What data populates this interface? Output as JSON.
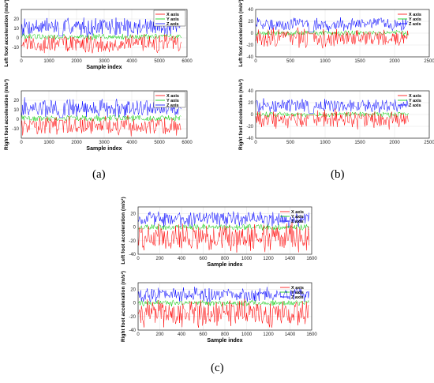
{
  "chart_data": [
    {
      "type": "line",
      "panel": "a",
      "ylabel": "Left foot acceleration (m/s²)",
      "xlabel": "Sample index",
      "xlim": [
        0,
        6000
      ],
      "ylim": [
        -20,
        30
      ],
      "xticks": [
        0,
        1000,
        2000,
        3000,
        4000,
        5000,
        6000
      ],
      "yticks": [
        -10,
        0,
        10,
        20
      ],
      "legend": "top-right",
      "legend_box": true,
      "data_xmax": 5800,
      "gaps": [
        [
          1380,
          1520
        ],
        [
          3850,
          3880
        ]
      ],
      "series": [
        {
          "name": "X axis",
          "color": "#ff0000",
          "center": -6,
          "amplitude": 9,
          "values_description": "values mostly between -15 and 0"
        },
        {
          "name": "Y axis",
          "color": "#00cc00",
          "center": 1,
          "amplitude": 3,
          "values_description": "values mostly between -3 and 5"
        },
        {
          "name": "Z axis",
          "color": "#0000ff",
          "center": 12,
          "amplitude": 9,
          "values_description": "values mostly between 5 and 25"
        }
      ]
    },
    {
      "type": "line",
      "panel": "a",
      "ylabel": "Right foot acceleration (m/s²)",
      "xlabel": "Sample index",
      "xlim": [
        0,
        6000
      ],
      "ylim": [
        -20,
        30
      ],
      "xticks": [
        0,
        1000,
        2000,
        3000,
        4000,
        5000,
        6000
      ],
      "yticks": [
        -10,
        0,
        10,
        20
      ],
      "legend": "top-right",
      "legend_box": true,
      "data_xmax": 5800,
      "gaps": [
        [
          1380,
          1520
        ]
      ],
      "series": [
        {
          "name": "X axis",
          "color": "#ff0000",
          "center": -7,
          "amplitude": 9
        },
        {
          "name": "Y axis",
          "color": "#00cc00",
          "center": 1,
          "amplitude": 3
        },
        {
          "name": "Z axis",
          "color": "#0000ff",
          "center": 12,
          "amplitude": 9
        }
      ]
    },
    {
      "type": "line",
      "panel": "b",
      "ylabel": "Left foot acceleration (m/s²)",
      "xlabel": "",
      "xlim": [
        0,
        2500
      ],
      "ylim": [
        -40,
        40
      ],
      "xticks": [
        0,
        500,
        1000,
        1500,
        2000,
        2500
      ],
      "yticks": [
        -40,
        -20,
        0,
        20,
        40
      ],
      "legend": "top-right",
      "legend_box": false,
      "data_xmax": 2200,
      "gaps": [
        [
          760,
          840
        ]
      ],
      "series": [
        {
          "name": "X axis",
          "color": "#ff0000",
          "center": -8,
          "amplitude": 14
        },
        {
          "name": "Y axis",
          "color": "#00cc00",
          "center": 0,
          "amplitude": 4
        },
        {
          "name": "Z axis",
          "color": "#0000ff",
          "center": 15,
          "amplitude": 10
        }
      ]
    },
    {
      "type": "line",
      "panel": "b",
      "ylabel": "Right foot acceleration (m/s²)",
      "xlabel": "",
      "xlim": [
        0,
        2500
      ],
      "ylim": [
        -40,
        40
      ],
      "xticks": [
        0,
        500,
        1000,
        1500,
        2000,
        2500
      ],
      "yticks": [
        -40,
        -20,
        0,
        20,
        40
      ],
      "legend": "top-right",
      "legend_box": false,
      "data_xmax": 2200,
      "gaps": [
        [
          760,
          840
        ]
      ],
      "series": [
        {
          "name": "X axis",
          "color": "#ff0000",
          "center": -8,
          "amplitude": 14
        },
        {
          "name": "Y axis",
          "color": "#00cc00",
          "center": 0,
          "amplitude": 4
        },
        {
          "name": "Z axis",
          "color": "#0000ff",
          "center": 15,
          "amplitude": 10
        }
      ]
    },
    {
      "type": "line",
      "panel": "c",
      "ylabel": "Left foot acceleration (m/s²)",
      "xlabel": "Sample index",
      "xlim": [
        0,
        1600
      ],
      "ylim": [
        -40,
        30
      ],
      "xticks": [
        0,
        200,
        400,
        600,
        800,
        1000,
        1200,
        1400,
        1600
      ],
      "yticks": [
        -40,
        -20,
        0,
        20
      ],
      "legend": "top-right",
      "legend_box": false,
      "data_xmax": 1580,
      "gaps": [],
      "series": [
        {
          "name": "X axis",
          "color": "#ff0000",
          "center": -15,
          "amplitude": 18
        },
        {
          "name": "Y axis",
          "color": "#00cc00",
          "center": 0,
          "amplitude": 4
        },
        {
          "name": "Z axis",
          "color": "#0000ff",
          "center": 12,
          "amplitude": 10
        }
      ]
    },
    {
      "type": "line",
      "panel": "c",
      "ylabel": "Right foot acceleration (m/s²)",
      "xlabel": "Sample index",
      "xlim": [
        0,
        1600
      ],
      "ylim": [
        -40,
        30
      ],
      "xticks": [
        0,
        200,
        400,
        600,
        800,
        1000,
        1200,
        1400,
        1600
      ],
      "yticks": [
        -40,
        -20,
        0,
        20
      ],
      "legend": "top-right",
      "legend_box": false,
      "data_xmax": 1580,
      "gaps": [],
      "series": [
        {
          "name": "X axis",
          "color": "#ff0000",
          "center": -15,
          "amplitude": 18
        },
        {
          "name": "Y axis",
          "color": "#00cc00",
          "center": 0,
          "amplitude": 4
        },
        {
          "name": "Z axis",
          "color": "#0000ff",
          "center": 12,
          "amplitude": 10
        }
      ]
    }
  ],
  "panel_labels": {
    "a": "(a)",
    "b": "(b)",
    "c": "(c)"
  }
}
